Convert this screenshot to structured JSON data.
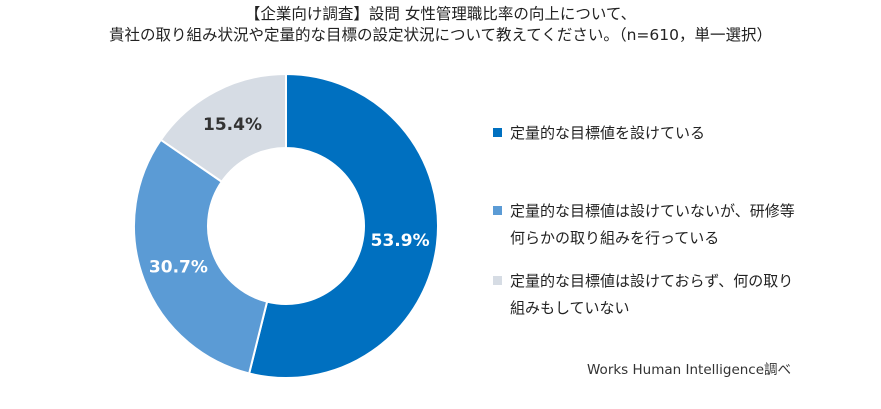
{
  "title_lines": [
    "【企業向け調査】設問 女性管理職比率の向上について、",
    "貴社の取り組み状況や定量的な目標の設定状況について教えてください。（n=610，単一選択）"
  ],
  "source": "Works Human Intelligence調べ",
  "chart_data": {
    "type": "pie",
    "donut": true,
    "start": "top",
    "direction": "clockwise",
    "legend_position": "right",
    "slices": [
      {
        "label": "定量的な目標値を設けている",
        "value": 53.9,
        "display": "53.9%",
        "color": "#0070c0",
        "label_color": "#ffffff"
      },
      {
        "label": "定量的な目標値は設けていないが、研修等何らかの取り組みを行っている",
        "value": 30.7,
        "display": "30.7%",
        "color": "#5b9bd5",
        "label_color": "#ffffff"
      },
      {
        "label": "定量的な目標値は設けておらず、何の取り組みもしていない",
        "value": 15.4,
        "display": "15.4%",
        "color": "#d6dce4",
        "label_color": "#333333"
      }
    ]
  }
}
